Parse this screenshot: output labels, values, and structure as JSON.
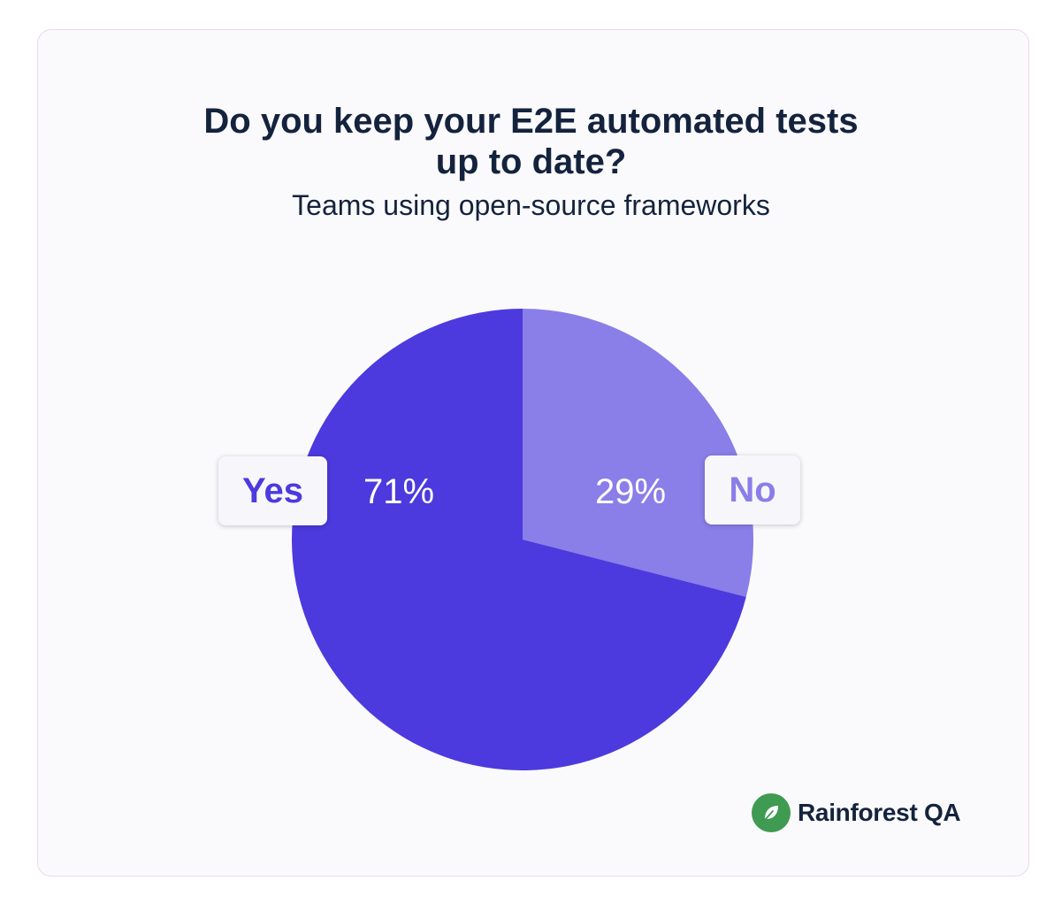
{
  "chart_data": {
    "type": "pie",
    "title": "Do you keep your E2E automated tests up to date?",
    "title_lines": [
      "Do you keep your E2E automated tests",
      "up to date?"
    ],
    "subtitle": "Teams using open-source frameworks",
    "categories": [
      "No",
      "Yes"
    ],
    "values": [
      29,
      71
    ],
    "value_labels": [
      "29%",
      "71%"
    ],
    "colors": [
      "#8a7ee8",
      "#4c3ade"
    ],
    "start_angle": "12 o'clock, clockwise",
    "legend": "beside slices"
  },
  "brand": {
    "name": "Rainforest QA",
    "logo_color": "#3f9a52",
    "logo_icon": "leaf-icon"
  },
  "colors": {
    "card_background": "#fafafc",
    "card_border": "#ecd6f2",
    "text": "#14233d"
  }
}
